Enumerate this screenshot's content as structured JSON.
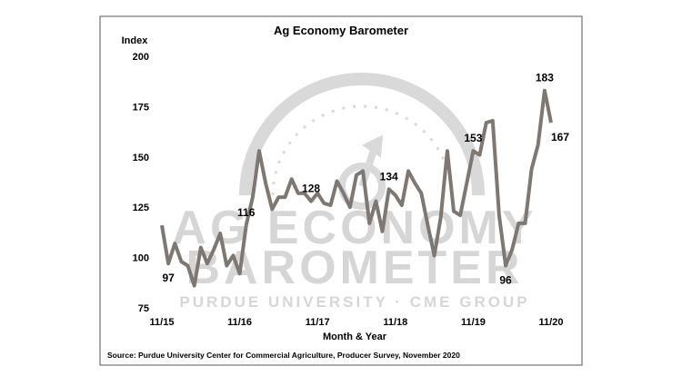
{
  "chart_data": {
    "type": "line",
    "title": "Ag Economy Barometer",
    "y_label": "Index",
    "x_label": "Month & Year",
    "source": "Source: Purdue University Center for Commercial Agriculture, Producer Survey, November 2020",
    "watermark": [
      "AG ECONOMY",
      "BAROMETER",
      "PURDUE UNIVERSITY  ·  CME GROUP"
    ],
    "categories": [
      "11/15",
      null,
      null,
      null,
      null,
      null,
      null,
      null,
      null,
      null,
      null,
      null,
      "11/16",
      null,
      null,
      null,
      null,
      null,
      null,
      null,
      null,
      null,
      null,
      null,
      "11/17",
      null,
      null,
      null,
      null,
      null,
      null,
      null,
      null,
      null,
      null,
      null,
      "11/18",
      null,
      null,
      null,
      null,
      null,
      null,
      null,
      null,
      null,
      null,
      null,
      "11/19",
      null,
      null,
      null,
      null,
      null,
      null,
      null,
      null,
      null,
      null,
      null,
      "11/20"
    ],
    "series": [
      {
        "name": "Ag Economy Barometer",
        "color": "#7f7772",
        "values": [
          116,
          97,
          107,
          98,
          96,
          86,
          105,
          97,
          104,
          112,
          96,
          101,
          92,
          116,
          130,
          153,
          137,
          124,
          130,
          130,
          139,
          132,
          132,
          128,
          132,
          127,
          126,
          138,
          132,
          125,
          141,
          143,
          117,
          128,
          113,
          134,
          131,
          126,
          143,
          137,
          132,
          116,
          101,
          120,
          153,
          123,
          121,
          137,
          153,
          151,
          167,
          168,
          121,
          96,
          104,
          117,
          117,
          144,
          156,
          183,
          167
        ],
        "value_labels": [
          null,
          "97",
          null,
          null,
          null,
          null,
          null,
          null,
          null,
          null,
          null,
          null,
          null,
          "116",
          null,
          null,
          null,
          null,
          null,
          null,
          null,
          null,
          null,
          "128",
          null,
          null,
          null,
          null,
          null,
          null,
          null,
          null,
          null,
          null,
          null,
          "134",
          null,
          null,
          null,
          null,
          null,
          null,
          null,
          null,
          null,
          null,
          null,
          null,
          "153",
          null,
          null,
          null,
          null,
          "96",
          null,
          null,
          null,
          null,
          null,
          "183",
          "167"
        ]
      }
    ],
    "ylim": [
      75,
      200
    ],
    "yticks": [
      75,
      100,
      125,
      150,
      175,
      200
    ],
    "grid": false
  }
}
